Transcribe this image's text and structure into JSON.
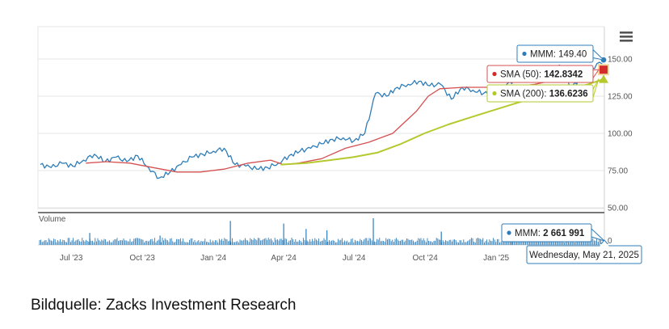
{
  "chart_data": {
    "type": "line",
    "title": "",
    "xlabel": "",
    "ylabel": "",
    "x_ticks": [
      "Jul '23",
      "Oct '23",
      "Jan '24",
      "Apr '24",
      "Jul '24",
      "Oct '24",
      "Jan '25"
    ],
    "y_ticks": [
      "150.00",
      "125.00",
      "100.00",
      "75.00",
      "50.00"
    ],
    "ylim": [
      50,
      160
    ],
    "volume_label": "Volume",
    "volume_zero_label": "0",
    "series": [
      {
        "name": "MMM",
        "color": "#2f7db8",
        "x": [
          "2023-05-22",
          "2023-06-05",
          "2023-06-19",
          "2023-07-03",
          "2023-07-17",
          "2023-07-31",
          "2023-08-14",
          "2023-08-28",
          "2023-09-11",
          "2023-09-25",
          "2023-10-09",
          "2023-10-23",
          "2023-11-06",
          "2023-11-20",
          "2023-12-04",
          "2023-12-18",
          "2024-01-01",
          "2024-01-15",
          "2024-01-29",
          "2024-02-12",
          "2024-02-26",
          "2024-03-11",
          "2024-03-25",
          "2024-04-08",
          "2024-04-22",
          "2024-05-06",
          "2024-05-20",
          "2024-06-03",
          "2024-06-17",
          "2024-07-01",
          "2024-07-15",
          "2024-07-29",
          "2024-08-12",
          "2024-08-26",
          "2024-09-09",
          "2024-09-23",
          "2024-10-07",
          "2024-10-21",
          "2024-11-04",
          "2024-11-18",
          "2024-12-02",
          "2024-12-16",
          "2024-12-30",
          "2025-01-13",
          "2025-01-27",
          "2025-02-10",
          "2025-02-24",
          "2025-03-10",
          "2025-03-24",
          "2025-04-07",
          "2025-04-21",
          "2025-05-05",
          "2025-05-21"
        ],
        "y": [
          79,
          77,
          80,
          78,
          82,
          86,
          81,
          84,
          81,
          85,
          77,
          70,
          74,
          79,
          84,
          86,
          88,
          90,
          79,
          78,
          76,
          77,
          80,
          85,
          88,
          90,
          93,
          96,
          97,
          95,
          100,
          127,
          125,
          131,
          133,
          135,
          132,
          133,
          123,
          131,
          129,
          127,
          128,
          132,
          137,
          139,
          142,
          140,
          146,
          130,
          138,
          144,
          149.4
        ]
      },
      {
        "name": "SMA (50)",
        "color": "#d55050",
        "x": [
          "2023-07-20",
          "2023-08-15",
          "2023-09-15",
          "2023-10-15",
          "2023-11-15",
          "2023-12-15",
          "2024-01-15",
          "2024-02-15",
          "2024-03-15",
          "2024-04-01",
          "2024-04-20",
          "2024-05-20",
          "2024-06-20",
          "2024-07-20",
          "2024-08-20",
          "2024-09-20",
          "2024-10-05",
          "2024-10-20",
          "2024-11-20",
          "2024-12-20",
          "2025-01-20",
          "2025-02-20",
          "2025-03-20",
          "2025-04-20",
          "2025-05-21"
        ],
        "y": [
          80,
          81,
          80,
          77,
          74,
          74,
          76,
          80,
          82,
          79,
          80,
          83,
          90,
          94,
          100,
          115,
          125,
          130,
          131,
          131,
          131,
          133,
          136,
          138,
          142.8342
        ]
      },
      {
        "name": "SMA (200)",
        "color": "#b5c92d",
        "x": [
          "2024-03-28",
          "2024-04-30",
          "2024-05-31",
          "2024-06-30",
          "2024-07-31",
          "2024-08-31",
          "2024-09-30",
          "2024-10-31",
          "2024-11-30",
          "2024-12-31",
          "2025-01-31",
          "2025-02-28",
          "2025-03-31",
          "2025-04-30",
          "2025-05-21"
        ],
        "y": [
          79,
          80,
          82,
          84,
          87,
          93,
          100,
          106,
          111,
          116,
          121,
          125,
          129,
          133,
          136.6236
        ]
      }
    ],
    "volume": {
      "name": "MMM",
      "color": "#2f7db8",
      "spikes": [
        {
          "date": "2023-07-25",
          "value": 0.45
        },
        {
          "date": "2023-10-24",
          "value": 0.35
        },
        {
          "date": "2024-01-23",
          "value": 0.9
        },
        {
          "date": "2024-04-01",
          "value": 0.8
        },
        {
          "date": "2024-04-30",
          "value": 0.6
        },
        {
          "date": "2024-05-27",
          "value": 0.55
        },
        {
          "date": "2024-07-26",
          "value": 1.0
        },
        {
          "date": "2024-10-22",
          "value": 0.5
        },
        {
          "date": "2025-01-21",
          "value": 0.4
        }
      ]
    },
    "tooltips": {
      "price": {
        "name": "MMM",
        "value": "149.40"
      },
      "sma50": {
        "name": "SMA (50)",
        "value": "142.8342"
      },
      "sma200": {
        "name": "SMA (200)",
        "value": "136.6236"
      },
      "volume": {
        "name": "MMM",
        "value": "2 661 991"
      },
      "date": "Wednesday, May 21, 2025"
    },
    "grid": true,
    "legend": "none"
  },
  "caption": "Bildquelle: Zacks Investment Research",
  "menu_icon": "hamburger-menu-icon"
}
